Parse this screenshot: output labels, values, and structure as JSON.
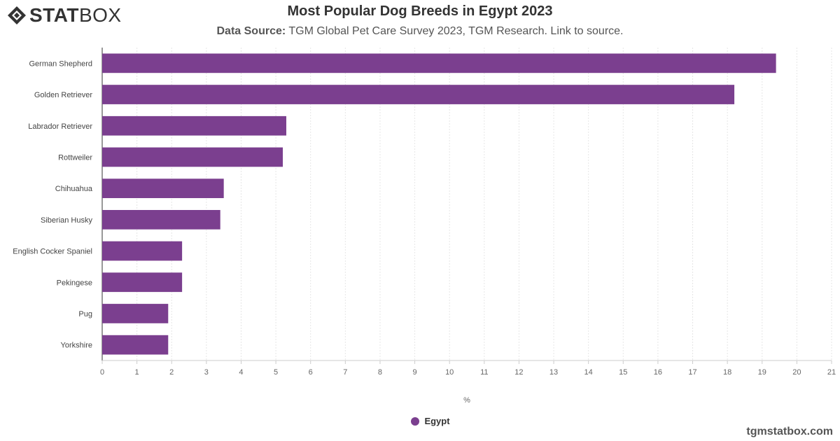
{
  "brand": {
    "logo_text_bold": "STAT",
    "logo_text_light": "BOX",
    "logo_icon": "statbox-logo-icon"
  },
  "header": {
    "title": "Most Popular Dog Breeds in Egypt 2023",
    "source_label": "Data Source:",
    "source_text": " TGM Global Pet Care Survey 2023, TGM Research. Link to source."
  },
  "footer": {
    "site": "tgmstatbox.com"
  },
  "colors": {
    "bar": "#7B3F8F",
    "grid": "#e6e6e6",
    "axis": "#333333"
  },
  "chart_data": {
    "type": "bar",
    "orientation": "horizontal",
    "title": "Most Popular Dog Breeds in Egypt 2023",
    "categories": [
      "German Shepherd",
      "Golden Retriever",
      "Labrador Retriever",
      "Rottweiler",
      "Chihuahua",
      "Siberian Husky",
      "English Cocker Spaniel",
      "Pekingese",
      "Pug",
      "Yorkshire"
    ],
    "series": [
      {
        "name": "Egypt",
        "values": [
          19.4,
          18.2,
          5.3,
          5.2,
          3.5,
          3.4,
          2.3,
          2.3,
          1.9,
          1.9
        ]
      }
    ],
    "xlabel": "%",
    "ylabel": "",
    "xlim": [
      0,
      21
    ],
    "xticks": [
      "0",
      "1",
      "2",
      "3",
      "4",
      "5",
      "6",
      "7",
      "8",
      "9",
      "10",
      "11",
      "12",
      "13",
      "14",
      "15",
      "16",
      "17",
      "18",
      "19",
      "20",
      "21"
    ],
    "grid": true,
    "legend_position": "bottom-center"
  }
}
